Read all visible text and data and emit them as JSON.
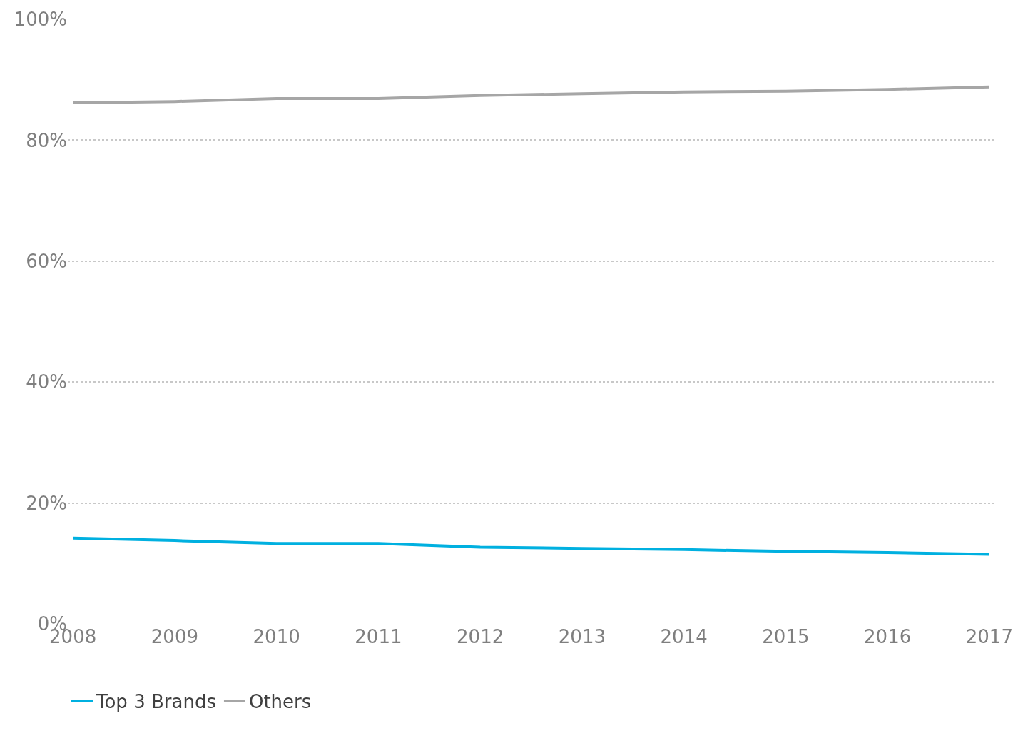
{
  "chart_data": {
    "type": "line",
    "categories": [
      "2008",
      "2009",
      "2010",
      "2011",
      "2012",
      "2013",
      "2014",
      "2015",
      "2016",
      "2017"
    ],
    "series": [
      {
        "name": "Top 3 Brands",
        "color": "#00b0e0",
        "values": [
          14.2,
          13.8,
          13.3,
          13.3,
          12.7,
          12.5,
          12.3,
          12.0,
          11.8,
          11.5
        ]
      },
      {
        "name": "Others",
        "color": "#a6a6a6",
        "values": [
          86.2,
          86.4,
          86.9,
          86.9,
          87.4,
          87.7,
          88.0,
          88.1,
          88.4,
          88.8
        ]
      }
    ],
    "ylim": [
      0,
      100
    ],
    "yticks": [
      {
        "value": 0,
        "label": "0%"
      },
      {
        "value": 20,
        "label": "20%"
      },
      {
        "value": 40,
        "label": "40%"
      },
      {
        "value": 60,
        "label": "60%"
      },
      {
        "value": 80,
        "label": "80%"
      },
      {
        "value": 100,
        "label": "100%"
      }
    ],
    "grid": "y",
    "legend": "bottom left",
    "marker": "none",
    "line_style": "solid"
  }
}
